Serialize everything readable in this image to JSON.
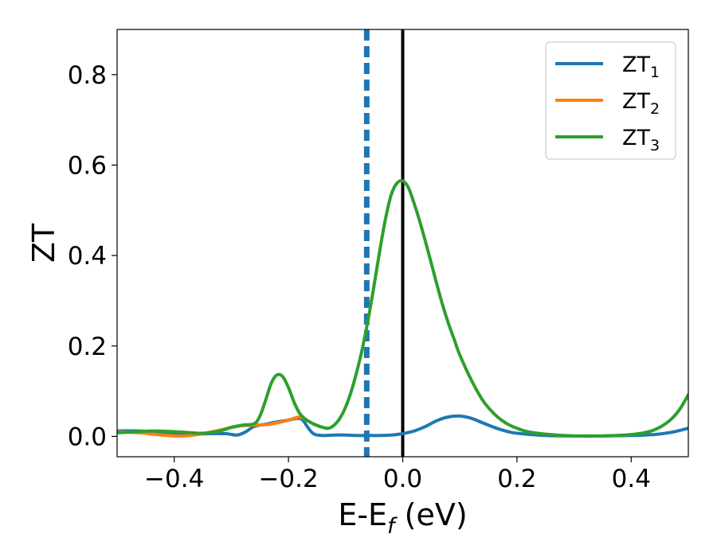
{
  "chart_data": {
    "type": "line",
    "title": "",
    "xlabel": {
      "main": "E-E",
      "sub": "f",
      "suffix": " (eV)"
    },
    "ylabel": "ZT",
    "xlim": [
      -0.5,
      0.5
    ],
    "ylim": [
      -0.045,
      0.9
    ],
    "xticks": [
      -0.4,
      -0.2,
      0.0,
      0.2,
      0.4
    ],
    "xtick_labels": [
      "−0.4",
      "−0.2",
      "0.0",
      "0.2",
      "0.4"
    ],
    "yticks": [
      0.0,
      0.2,
      0.4,
      0.6,
      0.8
    ],
    "ytick_labels": [
      "0.0",
      "0.2",
      "0.4",
      "0.6",
      "0.8"
    ],
    "grid": false,
    "legend_position": "top-right",
    "reference_lines": [
      {
        "x": 0.0,
        "style": "solid",
        "color": "#000000"
      },
      {
        "x": -0.063,
        "style": "dashed",
        "color": "#1f77b4"
      }
    ],
    "series": [
      {
        "name": "ZT",
        "subscript": "1",
        "color": "#1f77b4",
        "points": [
          [
            -0.5,
            0.012
          ],
          [
            -0.46,
            0.012
          ],
          [
            -0.42,
            0.008
          ],
          [
            -0.38,
            0.004
          ],
          [
            -0.34,
            0.006
          ],
          [
            -0.31,
            0.006
          ],
          [
            -0.29,
            0.003
          ],
          [
            -0.275,
            0.01
          ],
          [
            -0.26,
            0.022
          ],
          [
            -0.24,
            0.027
          ],
          [
            -0.22,
            0.032
          ],
          [
            -0.2,
            0.036
          ],
          [
            -0.185,
            0.04
          ],
          [
            -0.175,
            0.036
          ],
          [
            -0.165,
            0.018
          ],
          [
            -0.155,
            0.005
          ],
          [
            -0.14,
            0.002
          ],
          [
            -0.12,
            0.003
          ],
          [
            -0.1,
            0.003
          ],
          [
            -0.08,
            0.002
          ],
          [
            -0.06,
            0.002
          ],
          [
            -0.04,
            0.002
          ],
          [
            -0.02,
            0.003
          ],
          [
            0.0,
            0.006
          ],
          [
            0.02,
            0.012
          ],
          [
            0.04,
            0.022
          ],
          [
            0.06,
            0.035
          ],
          [
            0.08,
            0.043
          ],
          [
            0.1,
            0.045
          ],
          [
            0.12,
            0.04
          ],
          [
            0.14,
            0.03
          ],
          [
            0.16,
            0.02
          ],
          [
            0.18,
            0.012
          ],
          [
            0.2,
            0.007
          ],
          [
            0.25,
            0.002
          ],
          [
            0.3,
            0.001
          ],
          [
            0.35,
            0.001
          ],
          [
            0.4,
            0.002
          ],
          [
            0.44,
            0.004
          ],
          [
            0.47,
            0.009
          ],
          [
            0.5,
            0.018
          ]
        ]
      },
      {
        "name": "ZT",
        "subscript": "2",
        "color": "#ff7f0e",
        "points": [
          [
            -0.5,
            0.01
          ],
          [
            -0.46,
            0.008
          ],
          [
            -0.43,
            0.004
          ],
          [
            -0.4,
            0.001
          ],
          [
            -0.38,
            0.001
          ],
          [
            -0.35,
            0.006
          ],
          [
            -0.32,
            0.014
          ],
          [
            -0.3,
            0.02
          ],
          [
            -0.28,
            0.024
          ],
          [
            -0.26,
            0.025
          ],
          [
            -0.24,
            0.026
          ],
          [
            -0.22,
            0.03
          ],
          [
            -0.2,
            0.036
          ],
          [
            -0.185,
            0.042
          ],
          [
            -0.175,
            0.041
          ],
          [
            -0.16,
            0.03
          ],
          [
            -0.145,
            0.022
          ]
        ]
      },
      {
        "name": "ZT",
        "subscript": "3",
        "color": "#2ca02c",
        "points": [
          [
            -0.5,
            0.008
          ],
          [
            -0.47,
            0.01
          ],
          [
            -0.44,
            0.012
          ],
          [
            -0.41,
            0.011
          ],
          [
            -0.38,
            0.009
          ],
          [
            -0.35,
            0.007
          ],
          [
            -0.32,
            0.012
          ],
          [
            -0.3,
            0.02
          ],
          [
            -0.28,
            0.025
          ],
          [
            -0.26,
            0.028
          ],
          [
            -0.25,
            0.045
          ],
          [
            -0.24,
            0.08
          ],
          [
            -0.23,
            0.118
          ],
          [
            -0.22,
            0.136
          ],
          [
            -0.21,
            0.132
          ],
          [
            -0.2,
            0.108
          ],
          [
            -0.19,
            0.075
          ],
          [
            -0.18,
            0.05
          ],
          [
            -0.17,
            0.038
          ],
          [
            -0.16,
            0.03
          ],
          [
            -0.15,
            0.024
          ],
          [
            -0.14,
            0.02
          ],
          [
            -0.13,
            0.018
          ],
          [
            -0.12,
            0.025
          ],
          [
            -0.11,
            0.04
          ],
          [
            -0.1,
            0.065
          ],
          [
            -0.09,
            0.1
          ],
          [
            -0.08,
            0.145
          ],
          [
            -0.07,
            0.198
          ],
          [
            -0.06,
            0.262
          ],
          [
            -0.05,
            0.335
          ],
          [
            -0.04,
            0.412
          ],
          [
            -0.03,
            0.482
          ],
          [
            -0.02,
            0.535
          ],
          [
            -0.01,
            0.56
          ],
          [
            0.0,
            0.565
          ],
          [
            0.01,
            0.55
          ],
          [
            0.02,
            0.515
          ],
          [
            0.03,
            0.475
          ],
          [
            0.04,
            0.43
          ],
          [
            0.05,
            0.383
          ],
          [
            0.06,
            0.335
          ],
          [
            0.07,
            0.29
          ],
          [
            0.08,
            0.25
          ],
          [
            0.09,
            0.215
          ],
          [
            0.1,
            0.18
          ],
          [
            0.12,
            0.125
          ],
          [
            0.14,
            0.08
          ],
          [
            0.16,
            0.05
          ],
          [
            0.18,
            0.03
          ],
          [
            0.2,
            0.018
          ],
          [
            0.22,
            0.01
          ],
          [
            0.25,
            0.005
          ],
          [
            0.3,
            0.001
          ],
          [
            0.35,
            0.001
          ],
          [
            0.4,
            0.004
          ],
          [
            0.43,
            0.01
          ],
          [
            0.45,
            0.02
          ],
          [
            0.47,
            0.038
          ],
          [
            0.485,
            0.06
          ],
          [
            0.5,
            0.092
          ]
        ]
      }
    ]
  }
}
